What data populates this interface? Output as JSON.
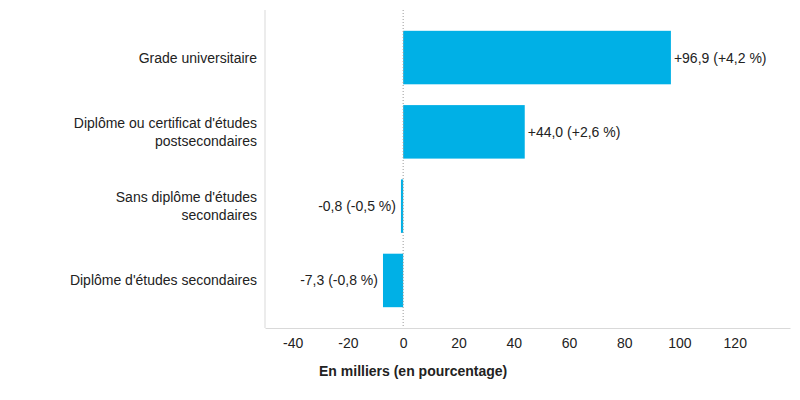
{
  "chart_data": {
    "type": "bar",
    "orientation": "horizontal",
    "categories": [
      "Grade universitaire",
      "Diplôme ou certificat d'études postsecondaires",
      "Sans diplôme d'études secondaires",
      "Diplôme d'études secondaires"
    ],
    "values": [
      96.9,
      44.0,
      -0.8,
      -7.3
    ],
    "value_labels": [
      "+96,9 (+4,2 %)",
      "+44,0 (+2,6 %)",
      "-0,8 (-0,5 %)",
      "-7,3 (-0,8 %)"
    ],
    "data_labels": true,
    "color": "#00b0e6",
    "x_label": "En milliers (en pourcentage)",
    "xlim": [
      -50,
      140
    ],
    "xticks": [
      -40,
      -20,
      0,
      20,
      40,
      60,
      80,
      100,
      120
    ],
    "grid": false
  }
}
